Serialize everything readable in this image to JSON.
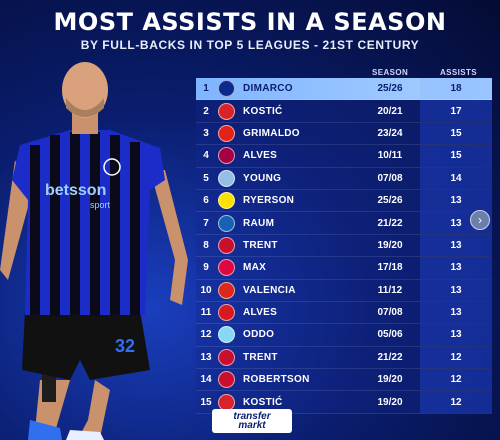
{
  "header": {
    "title": "MOST ASSISTS IN A SEASON",
    "subtitle": "BY FULL-BACKS IN TOP 5 LEAGUES - 21ST CENTURY"
  },
  "columns": {
    "season": "SEASON",
    "assists": "ASSISTS"
  },
  "rows": [
    {
      "rank": "1",
      "club": "inter",
      "name": "DIMARCO",
      "season": "25/26",
      "assists": "18",
      "color": "#0b2a8c"
    },
    {
      "rank": "2",
      "club": "frankfurt",
      "name": "KOSTIĆ",
      "season": "20/21",
      "assists": "17",
      "color": "#d8232a"
    },
    {
      "rank": "3",
      "club": "leverkusen",
      "name": "GRIMALDO",
      "season": "23/24",
      "assists": "15",
      "color": "#e32219"
    },
    {
      "rank": "4",
      "club": "barcelona",
      "name": "ALVES",
      "season": "10/11",
      "assists": "15",
      "color": "#a50044"
    },
    {
      "rank": "5",
      "club": "aston-villa",
      "name": "YOUNG",
      "season": "07/08",
      "assists": "14",
      "color": "#95bfe5"
    },
    {
      "rank": "6",
      "club": "dortmund",
      "name": "RYERSON",
      "season": "25/26",
      "assists": "13",
      "color": "#fde100"
    },
    {
      "rank": "7",
      "club": "hoffenheim",
      "name": "RAUM",
      "season": "21/22",
      "assists": "13",
      "color": "#1961b5"
    },
    {
      "rank": "8",
      "club": "liverpool",
      "name": "TRENT",
      "season": "19/20",
      "assists": "13",
      "color": "#c8102e"
    },
    {
      "rank": "9",
      "club": "leipzig",
      "name": "MAX",
      "season": "17/18",
      "assists": "13",
      "color": "#dd0741"
    },
    {
      "rank": "10",
      "club": "man-united",
      "name": "VALENCIA",
      "season": "11/12",
      "assists": "13",
      "color": "#da291c"
    },
    {
      "rank": "11",
      "club": "sevilla",
      "name": "ALVES",
      "season": "07/08",
      "assists": "13",
      "color": "#d71920"
    },
    {
      "rank": "12",
      "club": "lazio",
      "name": "ODDO",
      "season": "05/06",
      "assists": "13",
      "color": "#87d8f7"
    },
    {
      "rank": "13",
      "club": "liverpool",
      "name": "TRENT",
      "season": "21/22",
      "assists": "12",
      "color": "#c8102e"
    },
    {
      "rank": "14",
      "club": "liverpool",
      "name": "ROBERTSON",
      "season": "19/20",
      "assists": "12",
      "color": "#c8102e"
    },
    {
      "rank": "15",
      "club": "frankfurt",
      "name": "KOSTIĆ",
      "season": "19/20",
      "assists": "12",
      "color": "#d8232a"
    }
  ],
  "player_shirt": {
    "sponsor": "betsson",
    "sponsor_sub": "sport",
    "number": "32"
  },
  "brand": {
    "line1": "transfer",
    "line2": "markt"
  },
  "next_icon": "chevron-right-icon"
}
